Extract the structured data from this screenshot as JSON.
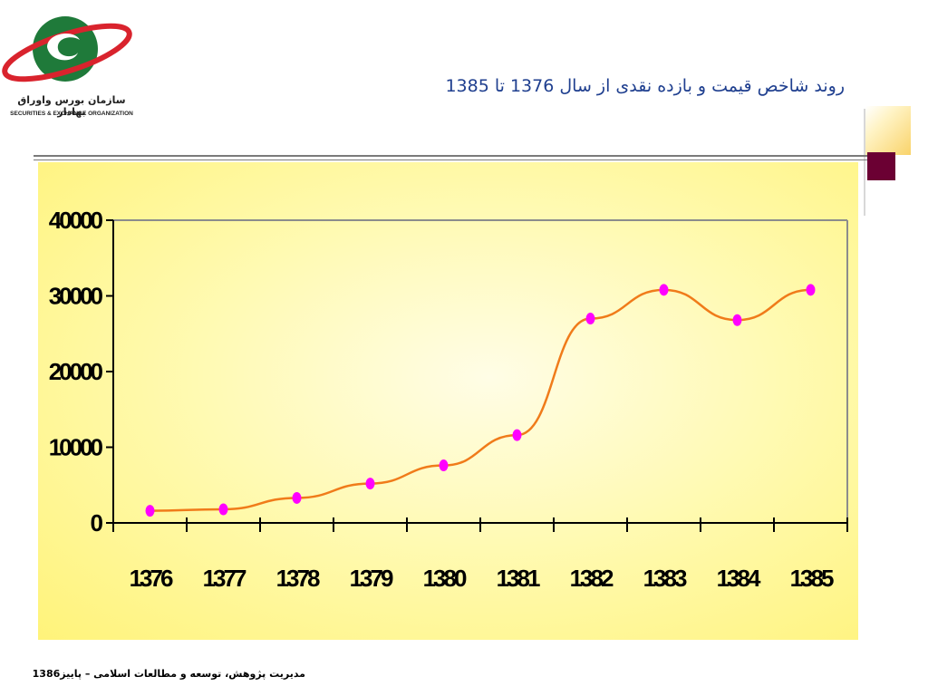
{
  "header": {
    "logo_text_fa": "سازمان بورس واوراق بهادار",
    "logo_text_en": "SECURITIES & EXCHANGE ORGANIZATION",
    "title": "روند شاخص قیمت و بازده نقدی از سال 1376 تا 1385"
  },
  "colors": {
    "title": "#1f3f8f",
    "logo_red": "#d9232d",
    "logo_green": "#1f7a3a",
    "chart_bg": "#fff59a",
    "line": "#f07b1a",
    "marker": "#ff00ff",
    "accent_maroon": "#6b0033",
    "accent_gold": "#f9d36a"
  },
  "chart_data": {
    "type": "line",
    "title": "",
    "xlabel": "",
    "ylabel": "",
    "categories": [
      "1376",
      "1377",
      "1378",
      "1379",
      "1380",
      "1381",
      "1382",
      "1383",
      "1384",
      "1385"
    ],
    "series": [
      {
        "values": [
          1600,
          1800,
          3300,
          5200,
          7600,
          11600,
          27000,
          30800,
          26800,
          30800
        ]
      }
    ],
    "yticks": [
      "40000",
      "30000",
      "20000",
      "10000",
      "0"
    ],
    "ylim": [
      0,
      40000
    ],
    "grid": false,
    "legend": "none"
  },
  "footer": {
    "text": "مدیریت پژوهش، توسعه و مطالعات اسلامی – پاییز1386"
  }
}
